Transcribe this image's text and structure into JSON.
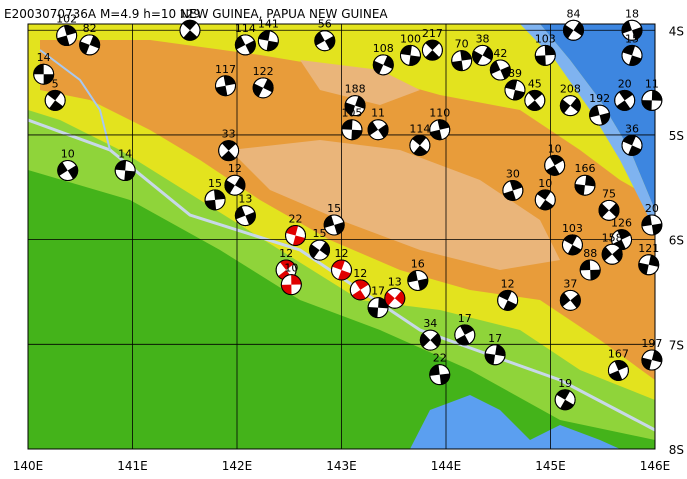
{
  "title": "E2003070736A M=4.9 h=10 NEW GUINEA, PAPUA NEW GUINEA",
  "map": {
    "lon_range": [
      140,
      146
    ],
    "lat_range": [
      3.94,
      8
    ],
    "lon_ticks": [
      {
        "value": 140,
        "label": "140E"
      },
      {
        "value": 141,
        "label": "141E"
      },
      {
        "value": 142,
        "label": "142E"
      },
      {
        "value": 143,
        "label": "143E"
      },
      {
        "value": 144,
        "label": "144E"
      },
      {
        "value": 145,
        "label": "145E"
      },
      {
        "value": 146,
        "label": "146E"
      }
    ],
    "lat_ticks": [
      {
        "value": 4,
        "label": "4S"
      },
      {
        "value": 5,
        "label": "5S"
      },
      {
        "value": 6,
        "label": "6S"
      },
      {
        "value": 7,
        "label": "7S"
      },
      {
        "value": 8,
        "label": "8S"
      }
    ]
  },
  "events": [
    {
      "lon": 140.15,
      "lat": 4.42,
      "depth": 14,
      "color": "#000000"
    },
    {
      "lon": 140.26,
      "lat": 4.67,
      "depth": 5,
      "color": "#000000"
    },
    {
      "lon": 140.37,
      "lat": 4.05,
      "depth": 102,
      "color": "#000000"
    },
    {
      "lon": 140.59,
      "lat": 4.14,
      "depth": 82,
      "color": "#000000"
    },
    {
      "lon": 140.38,
      "lat": 5.34,
      "depth": 10,
      "color": "#000000"
    },
    {
      "lon": 140.93,
      "lat": 5.34,
      "depth": 14,
      "color": "#000000"
    },
    {
      "lon": 141.55,
      "lat": 4.0,
      "depth": 129,
      "color": "#000000"
    },
    {
      "lon": 141.89,
      "lat": 4.53,
      "depth": 117,
      "color": "#000000"
    },
    {
      "lon": 142.25,
      "lat": 4.55,
      "depth": 122,
      "color": "#000000"
    },
    {
      "lon": 142.08,
      "lat": 4.14,
      "depth": 114,
      "color": "#000000"
    },
    {
      "lon": 142.3,
      "lat": 4.1,
      "depth": 141,
      "color": "#000000"
    },
    {
      "lon": 141.92,
      "lat": 5.15,
      "depth": 33,
      "color": "#000000"
    },
    {
      "lon": 141.79,
      "lat": 5.62,
      "depth": 15,
      "color": "#000000"
    },
    {
      "lon": 141.98,
      "lat": 5.48,
      "depth": 12,
      "color": "#000000"
    },
    {
      "lon": 142.08,
      "lat": 5.77,
      "depth": 13,
      "color": "#000000"
    },
    {
      "lon": 142.56,
      "lat": 5.96,
      "depth": 22,
      "color": "#e00000"
    },
    {
      "lon": 142.47,
      "lat": 6.29,
      "depth": 12,
      "color": "#e00000"
    },
    {
      "lon": 142.52,
      "lat": 6.43,
      "depth": 10,
      "color": "#e00000"
    },
    {
      "lon": 142.79,
      "lat": 6.1,
      "depth": 15,
      "color": "#000000"
    },
    {
      "lon": 142.93,
      "lat": 5.86,
      "depth": 15,
      "color": "#000000"
    },
    {
      "lon": 143.0,
      "lat": 6.29,
      "depth": 12,
      "color": "#e00000"
    },
    {
      "lon": 143.18,
      "lat": 6.48,
      "depth": 12,
      "color": "#e00000"
    },
    {
      "lon": 143.35,
      "lat": 6.65,
      "depth": 17,
      "color": "#000000"
    },
    {
      "lon": 143.51,
      "lat": 6.56,
      "depth": 13,
      "color": "#e00000"
    },
    {
      "lon": 143.73,
      "lat": 6.39,
      "depth": 16,
      "color": "#000000"
    },
    {
      "lon": 144.59,
      "lat": 6.58,
      "depth": 12,
      "color": "#000000"
    },
    {
      "lon": 144.18,
      "lat": 6.91,
      "depth": 17,
      "color": "#000000"
    },
    {
      "lon": 144.47,
      "lat": 7.1,
      "depth": 17,
      "color": "#000000"
    },
    {
      "lon": 143.85,
      "lat": 6.96,
      "depth": 34,
      "color": "#000000"
    },
    {
      "lon": 143.94,
      "lat": 7.29,
      "depth": 22,
      "color": "#000000"
    },
    {
      "lon": 145.14,
      "lat": 7.53,
      "depth": 19,
      "color": "#000000"
    },
    {
      "lon": 145.65,
      "lat": 7.25,
      "depth": 167,
      "color": "#000000"
    },
    {
      "lon": 145.97,
      "lat": 7.15,
      "depth": 197,
      "color": "#000000"
    },
    {
      "lon": 145.19,
      "lat": 6.58,
      "depth": 37,
      "color": "#000000"
    },
    {
      "lon": 145.38,
      "lat": 6.29,
      "depth": 88,
      "color": "#000000"
    },
    {
      "lon": 144.95,
      "lat": 5.62,
      "depth": 10,
      "color": "#000000"
    },
    {
      "lon": 144.64,
      "lat": 5.53,
      "depth": 30,
      "color": "#000000"
    },
    {
      "lon": 143.13,
      "lat": 4.72,
      "depth": 188,
      "color": "#000000"
    },
    {
      "lon": 143.35,
      "lat": 4.95,
      "depth": 11,
      "color": "#000000"
    },
    {
      "lon": 143.1,
      "lat": 4.95,
      "depth": 105,
      "color": "#000000"
    },
    {
      "lon": 143.75,
      "lat": 5.1,
      "depth": 114,
      "color": "#000000"
    },
    {
      "lon": 143.94,
      "lat": 4.95,
      "depth": 110,
      "color": "#000000"
    },
    {
      "lon": 143.4,
      "lat": 4.33,
      "depth": 108,
      "color": "#000000"
    },
    {
      "lon": 142.84,
      "lat": 4.1,
      "depth": 56,
      "color": "#000000"
    },
    {
      "lon": 143.66,
      "lat": 4.24,
      "depth": 100,
      "color": "#000000"
    },
    {
      "lon": 143.87,
      "lat": 4.19,
      "depth": 217,
      "color": "#000000"
    },
    {
      "lon": 144.15,
      "lat": 4.29,
      "depth": 70,
      "color": "#000000"
    },
    {
      "lon": 144.35,
      "lat": 4.24,
      "depth": 38,
      "color": "#000000"
    },
    {
      "lon": 144.52,
      "lat": 4.38,
      "depth": 42,
      "color": "#000000"
    },
    {
      "lon": 144.66,
      "lat": 4.57,
      "depth": 89,
      "color": "#000000"
    },
    {
      "lon": 144.85,
      "lat": 4.67,
      "depth": 45,
      "color": "#000000"
    },
    {
      "lon": 144.95,
      "lat": 4.24,
      "depth": 103,
      "color": "#000000"
    },
    {
      "lon": 145.22,
      "lat": 4.0,
      "depth": 84,
      "color": "#000000"
    },
    {
      "lon": 145.78,
      "lat": 4.0,
      "depth": 18,
      "color": "#000000"
    },
    {
      "lon": 145.78,
      "lat": 4.24,
      "depth": 15,
      "color": "#000000"
    },
    {
      "lon": 145.71,
      "lat": 4.67,
      "depth": 20,
      "color": "#000000"
    },
    {
      "lon": 145.97,
      "lat": 4.67,
      "depth": 11,
      "color": "#000000"
    },
    {
      "lon": 145.19,
      "lat": 4.72,
      "depth": 208,
      "color": "#000000"
    },
    {
      "lon": 145.47,
      "lat": 4.81,
      "depth": 192,
      "color": "#000000"
    },
    {
      "lon": 145.78,
      "lat": 5.1,
      "depth": 36,
      "color": "#000000"
    },
    {
      "lon": 145.04,
      "lat": 5.29,
      "depth": 10,
      "color": "#000000"
    },
    {
      "lon": 145.33,
      "lat": 5.48,
      "depth": 166,
      "color": "#000000"
    },
    {
      "lon": 145.56,
      "lat": 5.72,
      "depth": 75,
      "color": "#000000"
    },
    {
      "lon": 145.97,
      "lat": 5.86,
      "depth": 20,
      "color": "#000000"
    },
    {
      "lon": 145.21,
      "lat": 6.05,
      "depth": 103,
      "color": "#000000"
    },
    {
      "lon": 145.68,
      "lat": 6.0,
      "depth": 126,
      "color": "#000000"
    },
    {
      "lon": 145.94,
      "lat": 6.24,
      "depth": 121,
      "color": "#000000"
    },
    {
      "lon": 145.59,
      "lat": 6.14,
      "depth": 158,
      "color": "#000000"
    }
  ]
}
